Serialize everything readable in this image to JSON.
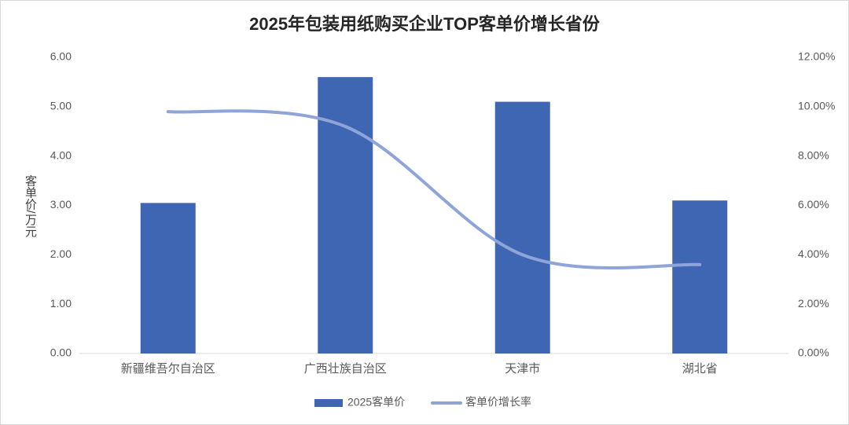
{
  "chart_data": {
    "type": "bar-line",
    "title": "2025年包装用纸购买企业TOP客单价增长省份",
    "y_label": "客单价/万元",
    "categories": [
      "新疆维吾尔自治区",
      "广西壮族自治区",
      "天津市",
      "湖北省"
    ],
    "series": [
      {
        "name": "2025客单价",
        "type": "bar",
        "color": "#3f66b3",
        "values": [
          3.05,
          5.6,
          5.1,
          3.1
        ]
      },
      {
        "name": "客单价增长率",
        "type": "line",
        "axis": "y2",
        "color": "#8fa4d8",
        "values": [
          9.8,
          9.2,
          4.0,
          3.6
        ]
      }
    ],
    "ylim": [
      0,
      6
    ],
    "yticks": [
      {
        "value": 0,
        "label": "0.00"
      },
      {
        "value": 1,
        "label": "1.00"
      },
      {
        "value": 2,
        "label": "2.00"
      },
      {
        "value": 3,
        "label": "3.00"
      },
      {
        "value": 4,
        "label": "4.00"
      },
      {
        "value": 5,
        "label": "5.00"
      },
      {
        "value": 6,
        "label": "6.00"
      }
    ],
    "y2lim": [
      0,
      12
    ],
    "y2ticks": [
      {
        "value": 0,
        "label": "0.00%"
      },
      {
        "value": 2,
        "label": "2.00%"
      },
      {
        "value": 4,
        "label": "4.00%"
      },
      {
        "value": 6,
        "label": "6.00%"
      },
      {
        "value": 8,
        "label": "8.00%"
      },
      {
        "value": 10,
        "label": "10.00%"
      },
      {
        "value": 12,
        "label": "12.00%"
      }
    ],
    "legend": "bottom"
  }
}
